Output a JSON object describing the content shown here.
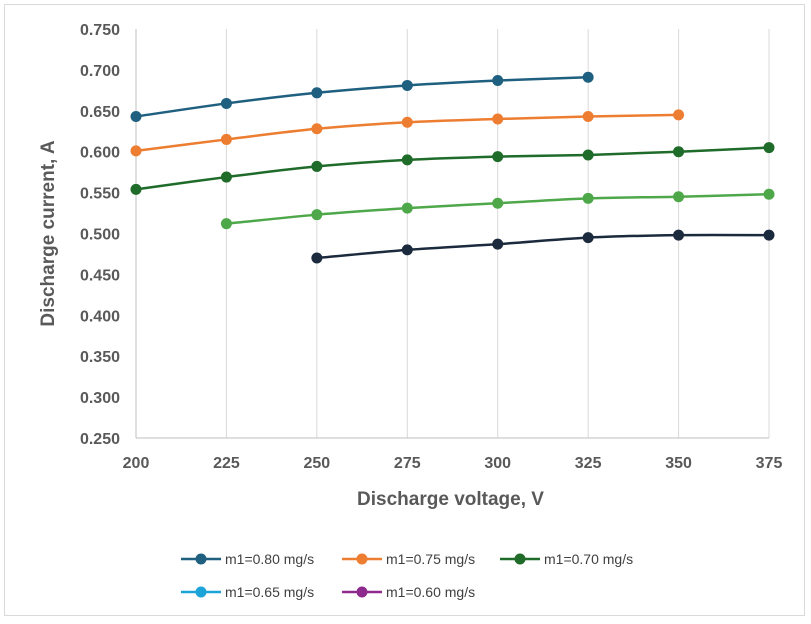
{
  "chart_data": {
    "type": "line",
    "xlabel": "Discharge voltage, V",
    "ylabel": "Discharge current, A",
    "xlim": [
      200,
      375
    ],
    "ylim": [
      0.25,
      0.75
    ],
    "x_ticks": [
      200,
      225,
      250,
      275,
      300,
      325,
      350,
      375
    ],
    "x_tick_labels": [
      "200",
      "225",
      "250",
      "275",
      "300",
      "325",
      "350",
      "375"
    ],
    "y_ticks": [
      0.25,
      0.3,
      0.35,
      0.4,
      0.45,
      0.5,
      0.55,
      0.6,
      0.65,
      0.7,
      0.75
    ],
    "y_tick_labels": [
      "0.250",
      "0.300",
      "0.350",
      "0.400",
      "0.450",
      "0.500",
      "0.550",
      "0.600",
      "0.650",
      "0.700",
      "0.750"
    ],
    "grid": {
      "vertical": true,
      "horizontal": false
    },
    "legend_position": "bottom",
    "series": [
      {
        "name": "m1=0.80 mg/s",
        "color": "#1f5f7f",
        "legend_color": "#1f5f7f",
        "x": [
          200,
          225,
          250,
          275,
          300,
          325
        ],
        "y": [
          0.643,
          0.659,
          0.672,
          0.681,
          0.687,
          0.691
        ]
      },
      {
        "name": "m1=0.75 mg/s",
        "color": "#ed7d31",
        "legend_color": "#ed7d31",
        "x": [
          200,
          225,
          250,
          275,
          300,
          325,
          350
        ],
        "y": [
          0.601,
          0.615,
          0.628,
          0.636,
          0.64,
          0.643,
          0.645
        ]
      },
      {
        "name": "m1=0.70 mg/s",
        "color": "#1e6b2a",
        "legend_color": "#1e6b2a",
        "x": [
          200,
          225,
          250,
          275,
          300,
          325,
          350,
          375
        ],
        "y": [
          0.554,
          0.569,
          0.582,
          0.59,
          0.594,
          0.596,
          0.6,
          0.605
        ]
      },
      {
        "name": "m1=0.65 mg/s",
        "color": "#4ea84a",
        "legend_color": "#1ca3d8",
        "x": [
          225,
          250,
          275,
          300,
          325,
          350,
          375
        ],
        "y": [
          0.512,
          0.523,
          0.531,
          0.537,
          0.543,
          0.545,
          0.548
        ]
      },
      {
        "name": "m1=0.60 mg/s",
        "color": "#1c2a3e",
        "legend_color": "#8e2a8e",
        "x": [
          250,
          275,
          300,
          325,
          350,
          375
        ],
        "y": [
          0.47,
          0.48,
          0.487,
          0.495,
          0.498,
          0.498
        ]
      }
    ]
  }
}
